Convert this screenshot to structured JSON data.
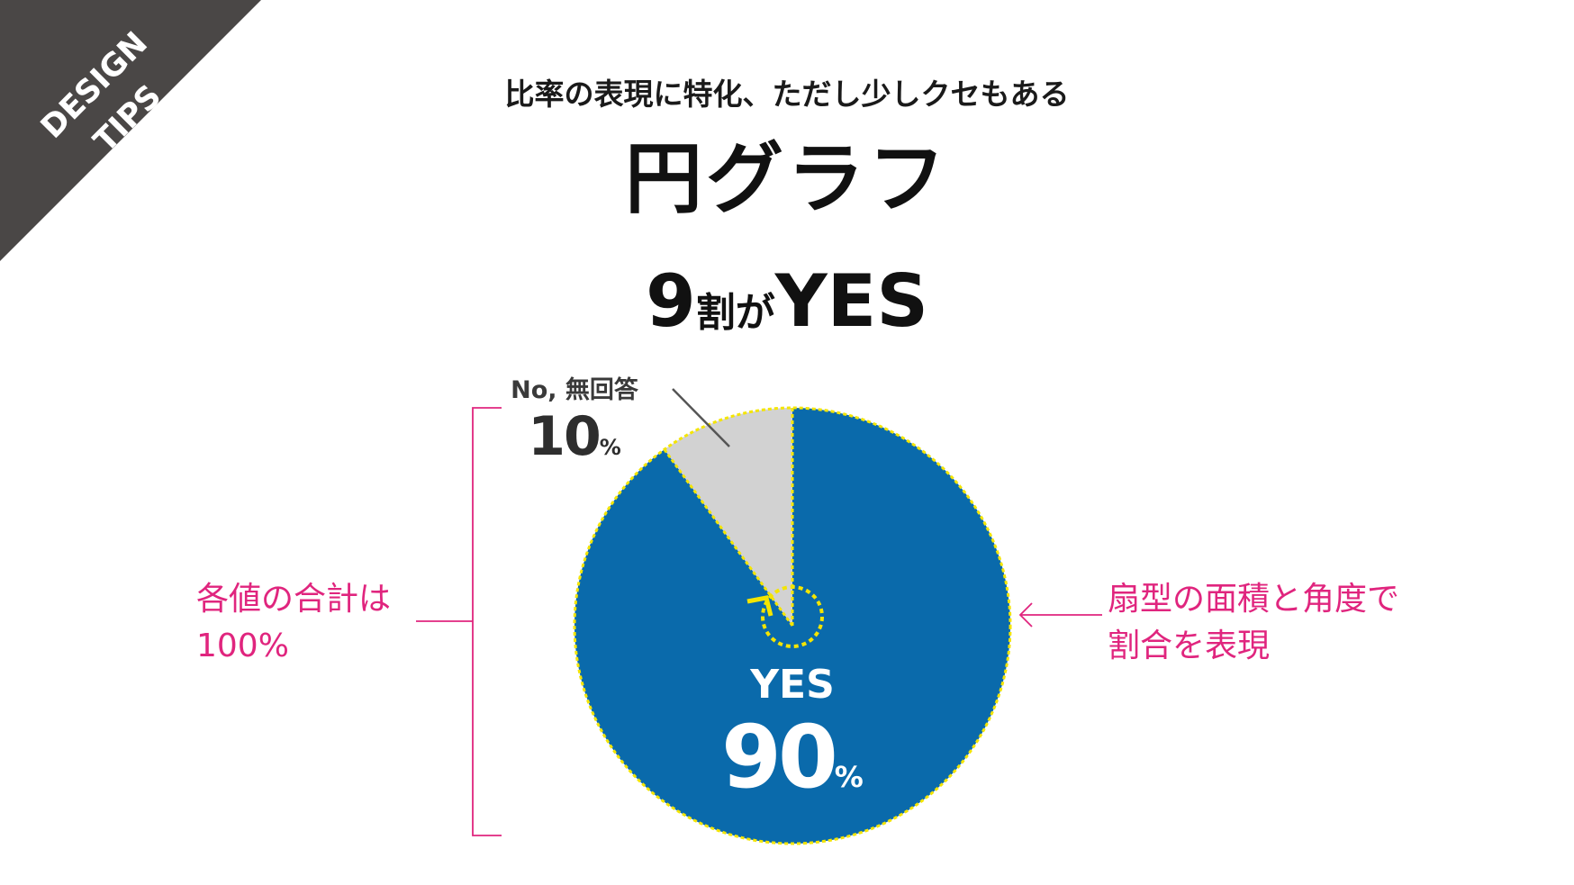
{
  "badge": {
    "line1": "DESIGN",
    "line2": "TIPS",
    "color": "#4a4746"
  },
  "header": {
    "subtitle": "比率の表現に特化、ただし少しクセもある",
    "title": "円グラフ"
  },
  "headline": {
    "num": "9",
    "unit": "割が",
    "word": "YES"
  },
  "chart_data": {
    "type": "pie",
    "slices": [
      {
        "name": "YES",
        "value": 90,
        "color": "#0a6aab"
      },
      {
        "name": "No, 無回答",
        "value": 10,
        "color": "#d2d2d2"
      }
    ],
    "start_angle_deg": 0,
    "direction": "clockwise",
    "annotations": {
      "no_label": "No, 無回答",
      "no_value": "10",
      "yes_label": "YES",
      "yes_value": "90",
      "percent_sign": "%"
    },
    "outline_color": "#f4e500"
  },
  "notes": {
    "left_line1": "各値の合計は",
    "left_line2": "100%",
    "right_line1": "扇型の面積と角度で",
    "right_line2": "割合を表現",
    "color": "#e0257e"
  }
}
